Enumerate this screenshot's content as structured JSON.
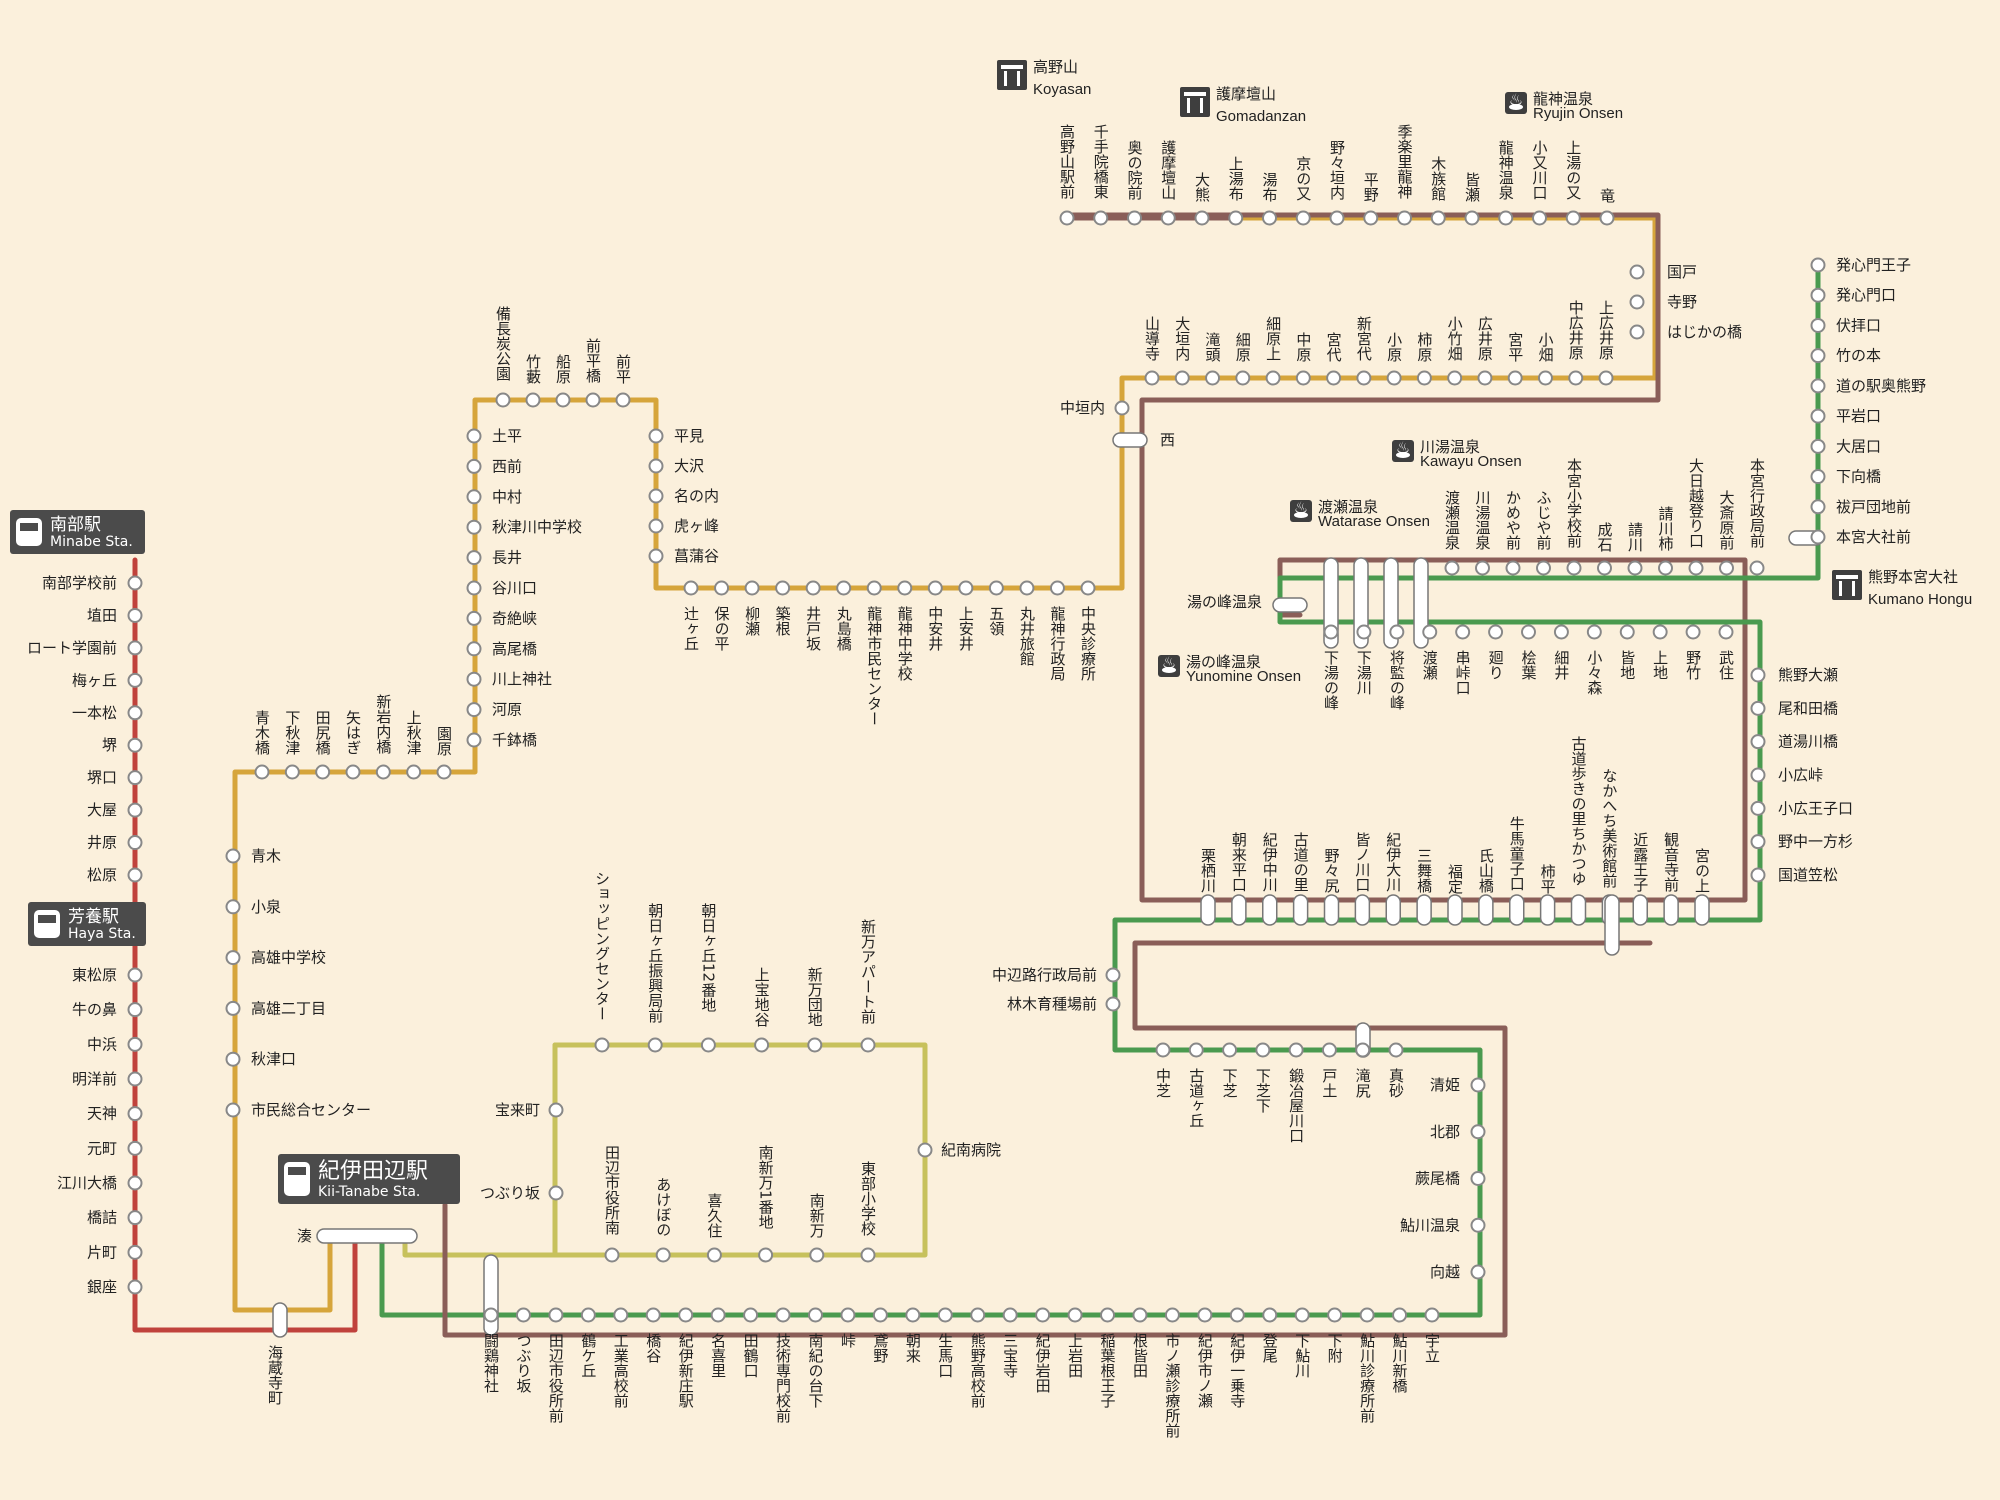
{
  "colors": {
    "background": "#fbf0dc",
    "red_line": "#c0423c",
    "gold_line": "#d6a53b",
    "olive_line": "#c7c15c",
    "green_line": "#4a9a4f",
    "brown_line": "#8a5e58",
    "station_box": "#4b4b4b"
  },
  "major_stations": [
    {
      "id": "minabe",
      "ja": "南部駅",
      "en": "Minabe Sta."
    },
    {
      "id": "haya",
      "ja": "芳養駅",
      "en": "Haya Sta."
    },
    {
      "id": "kiitanabe",
      "ja": "紀伊田辺駅",
      "en": "Kii-Tanabe Sta."
    }
  ],
  "landmarks": [
    {
      "id": "koyasan",
      "icon": "temple-icon",
      "ja": "高野山",
      "en": "Koyasan"
    },
    {
      "id": "gomadanzan",
      "icon": "temple-icon",
      "ja": "護摩壇山",
      "en": "Gomadanzan"
    },
    {
      "id": "ryujin",
      "icon": "onsen-icon",
      "ja": "龍神温泉",
      "en": "Ryujin Onsen"
    },
    {
      "id": "kawayu",
      "icon": "onsen-icon",
      "ja": "川湯温泉",
      "en": "Kawayu Onsen"
    },
    {
      "id": "watarase",
      "icon": "onsen-icon",
      "ja": "渡瀬温泉",
      "en": "Watarase Onsen"
    },
    {
      "id": "yunomine",
      "icon": "onsen-icon",
      "ja": "湯の峰温泉",
      "en": "Yunomine Onsen"
    },
    {
      "id": "hongu",
      "icon": "temple-icon",
      "ja": "熊野本宮大社",
      "en": "Kumano Hongu"
    }
  ],
  "stop_groups": {
    "minabe_line": [
      "南部学校前",
      "埴田",
      "ロート学園前",
      "梅ヶ丘",
      "一本松",
      "堺",
      "堺口",
      "大屋",
      "井原",
      "松原"
    ],
    "haya_line": [
      "東松原",
      "牛の鼻",
      "中浜",
      "明洋前",
      "天神",
      "元町",
      "江川大橋",
      "橋詰",
      "片町",
      "銀座"
    ],
    "kaizoji": [
      "海蔵寺町"
    ],
    "minato": [
      "湊"
    ],
    "akitsu_stem": [
      "青木",
      "小泉",
      "高雄中学校",
      "高雄二丁目",
      "秋津口",
      "市民総合センター"
    ],
    "akitsu_top": [
      "青木橋",
      "下秋津",
      "田尻橋",
      "矢はぎ",
      "新岩内橋",
      "上秋津",
      "園原"
    ],
    "ryujin_left": [
      "土平",
      "西前",
      "中村",
      "秋津川中学校",
      "長井",
      "谷川口",
      "奇絶峡",
      "高尾橋",
      "川上神社",
      "河原",
      "千鉢橋"
    ],
    "ryujin_top": [
      "備長炭公園",
      "竹藪",
      "船原",
      "前平橋",
      "前平"
    ],
    "ryujin_right": [
      "平見",
      "大沢",
      "名の内",
      "虎ヶ峰",
      "菖蒲谷"
    ],
    "ryujin_bottom": [
      "辻ヶ丘",
      "保の平",
      "柳瀬",
      "築根",
      "井戸坂",
      "丸島橋",
      "龍神市民センター",
      "龍神中学校",
      "中安井",
      "上安井",
      "五領",
      "丸井旅館",
      "龍神行政局",
      "中央診療所"
    ],
    "gold_riser": [
      "中垣内",
      "西"
    ],
    "gold_mid": [
      "山導寺",
      "大垣内",
      "滝頭",
      "細原",
      "細原上",
      "中原",
      "宮代",
      "新宮代",
      "小原",
      "柿原",
      "小竹畑",
      "広井原",
      "宮平",
      "小畑",
      "中広井原",
      "上広井原"
    ],
    "gold_right": [
      "国戸",
      "寺野",
      "はじかの橋"
    ],
    "gold_top": [
      "高野山駅前",
      "千手院橋東",
      "奥の院前",
      "護摩壇山",
      "大熊",
      "上湯布",
      "湯布",
      "京の又",
      "野々垣内",
      "平野",
      "季楽里龍神",
      "木族館",
      "皆瀬",
      "龍神温泉",
      "小又川口",
      "上湯の又",
      "竜"
    ],
    "hongu_green": [
      "発心門王子",
      "発心門口",
      "伏拝口",
      "竹の本",
      "道の駅奥熊野",
      "平岩口",
      "大居口",
      "下向橋",
      "祓戸団地前",
      "本宮大社前"
    ],
    "hongu_top": [
      "渡瀬温泉",
      "川湯温泉",
      "かめや前",
      "ふじや前",
      "本宮小学校前",
      "成石",
      "請川",
      "請川柿",
      "大日越登り口",
      "大斎原前",
      "本宮行政局前"
    ],
    "yunomine": [
      "湯の峰温泉"
    ],
    "hongu_lower": [
      "下湯の峰",
      "下湯川",
      "将監の峰",
      "渡瀬",
      "串峠口",
      "廻り",
      "桧葉",
      "細井",
      "小々森",
      "皆地",
      "上地",
      "野竹",
      "武住"
    ],
    "hongu_right": [
      "熊野大瀬",
      "尾和田橋",
      "道湯川橋",
      "小広峠",
      "小広王子口",
      "野中一方杉",
      "国道笠松"
    ],
    "nakahechi": [
      "栗栖川",
      "朝来平口",
      "紀伊中川",
      "古道の里",
      "野々尻",
      "皆ノ川口",
      "紀伊大川",
      "三舞橋",
      "福定",
      "氏山橋",
      "牛馬童子口",
      "柿平",
      "古道歩きの里ちかつゆ",
      "なかへち美術館前",
      "近露王子",
      "観音寺前",
      "宮の上"
    ],
    "nakahechi_side": [
      "中辺路行政局前",
      "林木育種場前"
    ],
    "kurisugawa": [
      "中芝",
      "古道ヶ丘",
      "下芝",
      "下芝下",
      "鍛冶屋川口",
      "戸土",
      "滝尻",
      "真砂"
    ],
    "tonda": [
      "清姫",
      "北郡",
      "蕨尾橋",
      "鮎川温泉",
      "向越"
    ],
    "shinjo_loop_top": [
      "ショッピングセンター",
      "朝日ヶ丘振興局前",
      "朝日ヶ丘12番地",
      "上宝地谷",
      "新万団地",
      "新万アパート前"
    ],
    "shinjo_loop_left": [
      "宝来町",
      "つぶり坂"
    ],
    "shinjo_loop_right": [
      "紀南病院"
    ],
    "shinjo_loop_bottom": [
      "田辺市役所南",
      "あけぼの",
      "喜久住",
      "南新万1番地",
      "南新万",
      "東部小学校"
    ],
    "main_bottom": [
      "闘鶏神社",
      "つぶり坂",
      "田辺市役所前",
      "鶴ケ丘",
      "工業高校前",
      "橋谷",
      "紀伊新庄駅",
      "名喜里",
      "田鶴口",
      "技術専門校前",
      "南紀の台下",
      "峠",
      "鳶野",
      "朝来",
      "生馬口",
      "熊野高校前",
      "三宝寺",
      "紀伊岩田",
      "上岩田",
      "稲葉根王子",
      "根皆田",
      "市ノ瀬診療所前",
      "紀伊市ノ瀬",
      "紀伊一乗寺",
      "登尾",
      "下鮎川",
      "下附",
      "鮎川診療所前",
      "鮎川新橋",
      "宇立"
    ]
  }
}
